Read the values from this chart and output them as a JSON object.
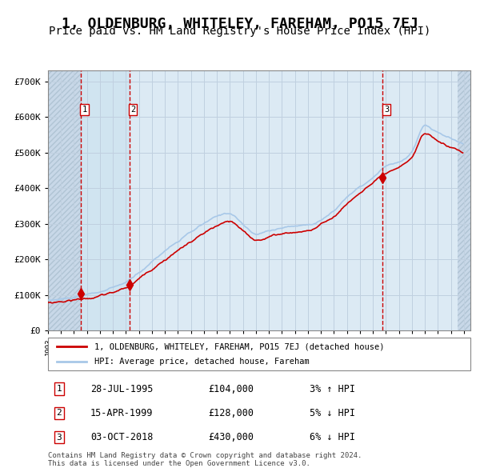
{
  "title": "1, OLDENBURG, WHITELEY, FAREHAM, PO15 7EJ",
  "subtitle": "Price paid vs. HM Land Registry's House Price Index (HPI)",
  "title_fontsize": 13,
  "subtitle_fontsize": 10,
  "ylabel_ticks": [
    "£0",
    "£100K",
    "£200K",
    "£300K",
    "£400K",
    "£500K",
    "£600K",
    "£700K"
  ],
  "ytick_vals": [
    0,
    100000,
    200000,
    300000,
    400000,
    500000,
    600000,
    700000
  ],
  "ylim": [
    0,
    730000
  ],
  "sale_dates": [
    "1995-07-28",
    "1999-04-15",
    "2018-10-03"
  ],
  "sale_prices": [
    104000,
    128000,
    430000
  ],
  "sale_labels": [
    "1",
    "2",
    "3"
  ],
  "transaction_info": [
    {
      "label": "1",
      "date": "28-JUL-1995",
      "price": "£104,000",
      "hpi": "3% ↑ HPI"
    },
    {
      "label": "2",
      "date": "15-APR-1999",
      "price": "£128,000",
      "hpi": "5% ↓ HPI"
    },
    {
      "label": "3",
      "date": "03-OCT-2018",
      "price": "£430,000",
      "hpi": "6% ↓ HPI"
    }
  ],
  "legend_line1": "1, OLDENBURG, WHITELEY, FAREHAM, PO15 7EJ (detached house)",
  "legend_line2": "HPI: Average price, detached house, Fareham",
  "footnote": "Contains HM Land Registry data © Crown copyright and database right 2024.\nThis data is licensed under the Open Government Licence v3.0.",
  "hpi_color": "#a8c8e8",
  "price_color": "#cc0000",
  "sale_marker_color": "#cc0000",
  "vline_color": "#cc0000",
  "grid_color": "#c0d0e0",
  "bg_color": "#dce8f0",
  "plot_bg_color": "#e8f0f8",
  "hatch_bg_color": "#c8d8e8",
  "x_start_year": 1993,
  "x_end_year": 2025
}
